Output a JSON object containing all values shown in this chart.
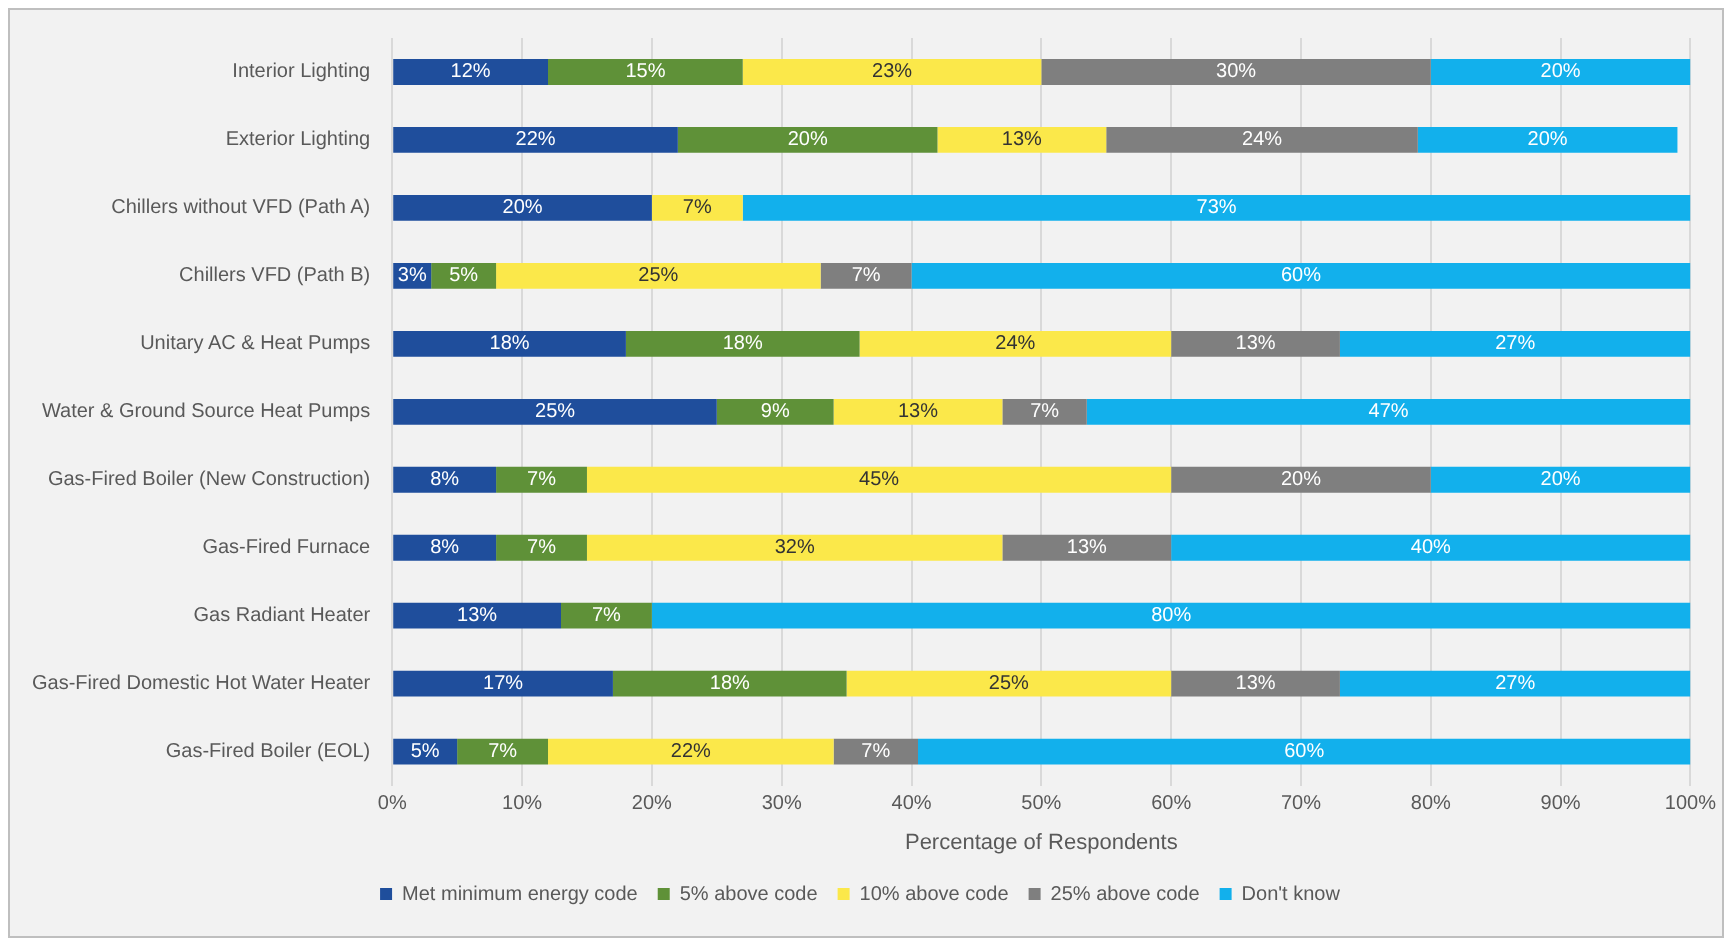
{
  "chart_data": {
    "type": "bar",
    "orientation": "horizontal",
    "stacked": true,
    "xlabel": "Percentage of Respondents",
    "categories": [
      "Interior Lighting",
      "Exterior Lighting",
      "Chillers without VFD (Path A)",
      "Chillers VFD (Path B)",
      "Unitary AC & Heat Pumps",
      "Water & Ground Source Heat Pumps",
      "Gas-Fired Boiler (New Construction)",
      "Gas-Fired Furnace",
      "Gas Radiant Heater",
      "Gas-Fired Domestic Hot Water Heater",
      "Gas-Fired Boiler (EOL)"
    ],
    "series": [
      {
        "name": "Met minimum energy code",
        "color": "#1f4e9c",
        "values": [
          12,
          22,
          20,
          3,
          18,
          25,
          8,
          8,
          13,
          17,
          5
        ],
        "value_labels": [
          "12%",
          "22%",
          "20%",
          "3%",
          "18%",
          "25%",
          "8%",
          "8%",
          "13%",
          "17%",
          "5%"
        ]
      },
      {
        "name": "5% above code",
        "color": "#5f9138",
        "values": [
          15,
          20,
          null,
          5,
          18,
          9,
          7,
          7,
          7,
          18,
          7
        ],
        "value_labels": [
          "15%",
          "20%",
          null,
          "5%",
          "18%",
          "9%",
          "7%",
          "7%",
          "7%",
          "18%",
          "7%"
        ]
      },
      {
        "name": "10% above code",
        "color": "#fbe84a",
        "values": [
          23,
          13,
          7,
          25,
          24,
          13,
          45,
          32,
          null,
          25,
          22
        ],
        "value_labels": [
          "23%",
          "13%",
          "7%",
          "25%",
          "24%",
          "13%",
          "45%",
          "32%",
          null,
          "25%",
          "22%"
        ]
      },
      {
        "name": "25% above code",
        "color": "#7f7f7f",
        "values": [
          30,
          24,
          null,
          7,
          13,
          6.5,
          20,
          13,
          null,
          13,
          6.5
        ],
        "value_labels": [
          "30%",
          "24%",
          null,
          "7%",
          "13%",
          "7%",
          "20%",
          "13%",
          null,
          "13%",
          "7%"
        ]
      },
      {
        "name": "Don't know",
        "color": "#12b0ec",
        "values": [
          20,
          20,
          73,
          60,
          27,
          46.5,
          20,
          40,
          80,
          27,
          59.5
        ],
        "value_labels": [
          "20%",
          "20%",
          "73%",
          "60%",
          "27%",
          "47%",
          "20%",
          "40%",
          "80%",
          "27%",
          "60%"
        ]
      }
    ],
    "xlim": [
      0,
      100
    ],
    "xticks": [
      {
        "value": 0,
        "label": "0%"
      },
      {
        "value": 10,
        "label": "10%"
      },
      {
        "value": 20,
        "label": "20%"
      },
      {
        "value": 30,
        "label": "30%"
      },
      {
        "value": 40,
        "label": "40%"
      },
      {
        "value": 50,
        "label": "50%"
      },
      {
        "value": 60,
        "label": "60%"
      },
      {
        "value": 70,
        "label": "70%"
      },
      {
        "value": 80,
        "label": "80%"
      },
      {
        "value": 90,
        "label": "90%"
      },
      {
        "value": 100,
        "label": "100%"
      }
    ],
    "grid": "x",
    "legend": "bottom"
  }
}
